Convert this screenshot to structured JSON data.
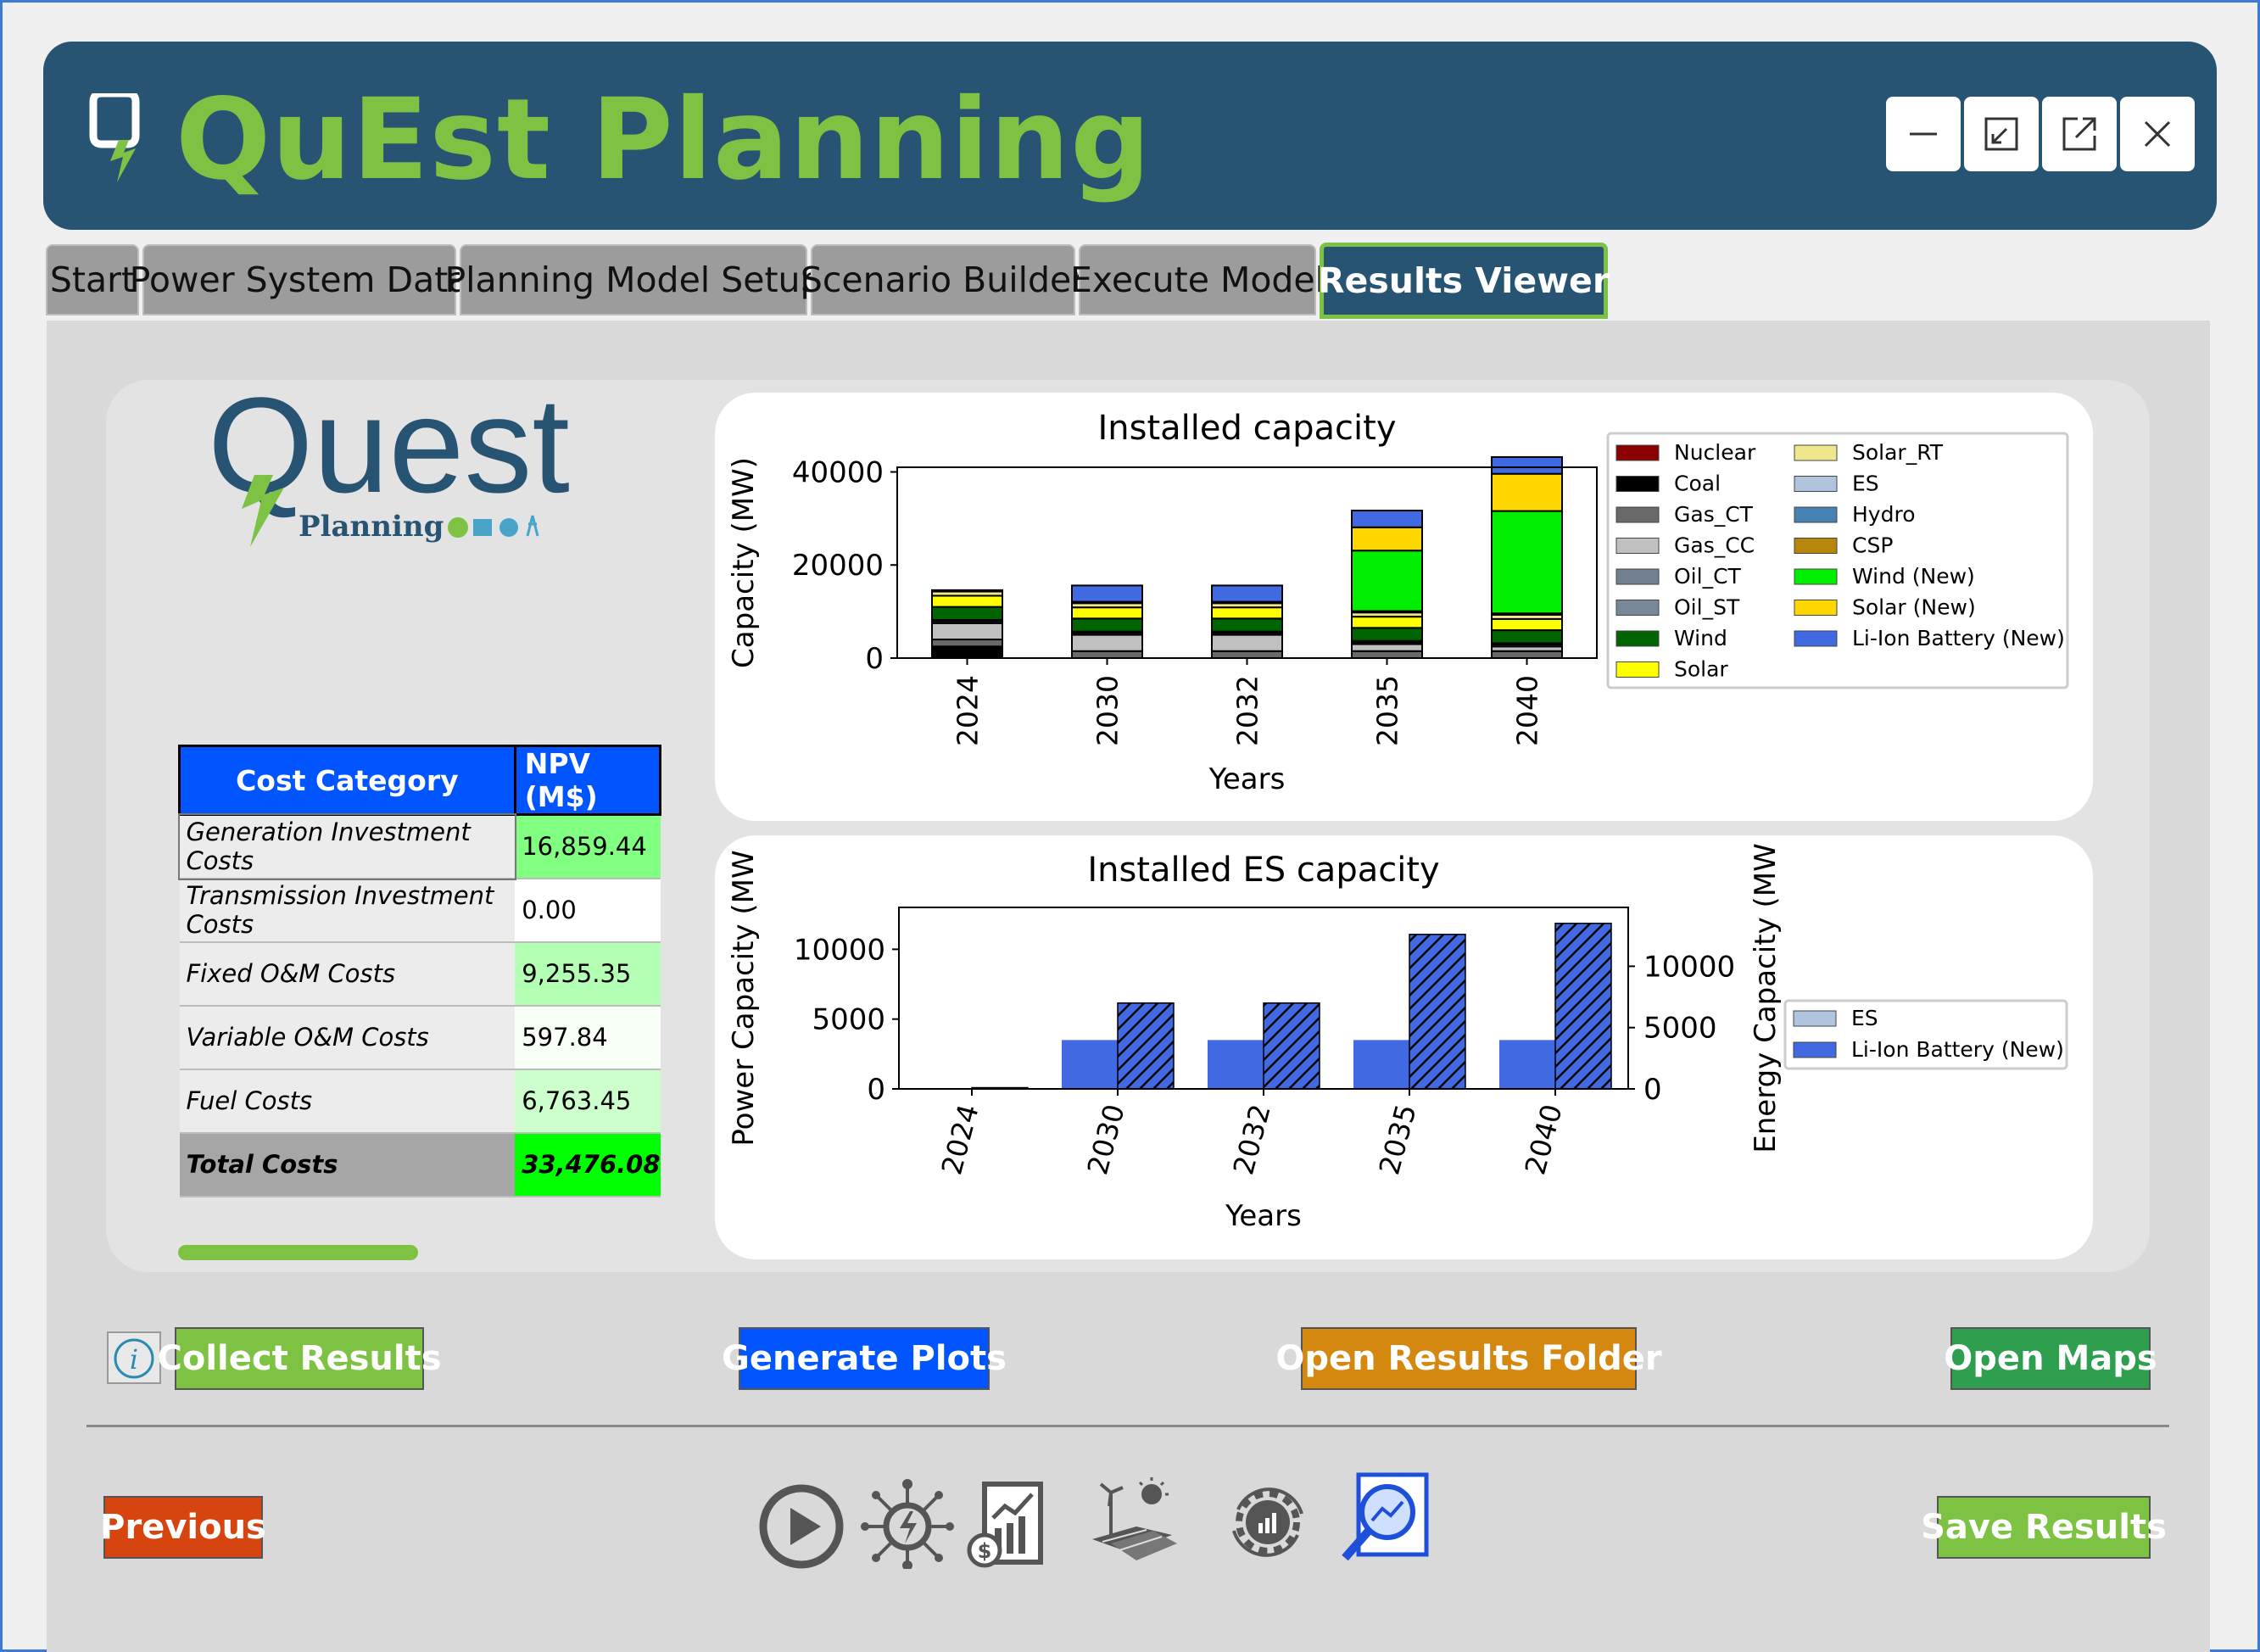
{
  "app": {
    "title": "QuEst Planning"
  },
  "window_controls": [
    {
      "name": "minimize"
    },
    {
      "name": "restore"
    },
    {
      "name": "popout"
    },
    {
      "name": "close"
    }
  ],
  "tabs": [
    {
      "label": "Start",
      "active": false
    },
    {
      "label": "Power System Data",
      "active": false
    },
    {
      "label": "Planning Model Setup",
      "active": false
    },
    {
      "label": "Scenario Builder",
      "active": false
    },
    {
      "label": "Execute Model",
      "active": false
    },
    {
      "label": "Results Viewer",
      "active": true
    }
  ],
  "logo": {
    "text_main": "Quest",
    "text_sub": "Planning"
  },
  "cost_table": {
    "headers": [
      "Cost Category",
      "NPV (M$)"
    ],
    "rows": [
      {
        "category": "Generation Investment Costs",
        "npv": "16,859.44",
        "color": "#80ff80"
      },
      {
        "category": "Transmission Investment Costs",
        "npv": "0.00",
        "color": "#ffffff"
      },
      {
        "category": "Fixed O&M Costs",
        "npv": "9,255.35",
        "color": "#b3ffb3"
      },
      {
        "category": "Variable O&M Costs",
        "npv": "597.84",
        "color": "#f7fff7"
      },
      {
        "category": "Fuel Costs",
        "npv": "6,763.45",
        "color": "#ccffcc"
      }
    ],
    "total": {
      "category": "Total Costs",
      "npv": "33,476.08"
    }
  },
  "chart_data": [
    {
      "type": "bar",
      "stacked": true,
      "title": "Installed capacity",
      "xlabel": "Years",
      "ylabel": "Capacity (MW)",
      "categories": [
        "2024",
        "2030",
        "2032",
        "2035",
        "2040"
      ],
      "ylim": [
        0,
        41000
      ],
      "yticks": [
        0,
        20000,
        40000
      ],
      "legend_position": "right",
      "series": [
        {
          "name": "Nuclear",
          "color": "#8b0000",
          "values": [
            0,
            0,
            0,
            0,
            0
          ]
        },
        {
          "name": "Coal",
          "color": "#000000",
          "values": [
            2500,
            0,
            0,
            0,
            0
          ]
        },
        {
          "name": "Gas_CT",
          "color": "#696969",
          "values": [
            1500,
            1500,
            1500,
            1500,
            1500
          ]
        },
        {
          "name": "Gas_CC",
          "color": "#c0c0c0",
          "values": [
            3500,
            3500,
            3500,
            1500,
            1000
          ]
        },
        {
          "name": "Oil_CT",
          "color": "#708090",
          "values": [
            400,
            400,
            400,
            400,
            400
          ]
        },
        {
          "name": "Oil_ST",
          "color": "#778899",
          "values": [
            300,
            300,
            300,
            300,
            300
          ]
        },
        {
          "name": "Wind",
          "color": "#006400",
          "values": [
            2800,
            2800,
            2800,
            2800,
            2800
          ]
        },
        {
          "name": "Solar",
          "color": "#ffff00",
          "values": [
            2400,
            2400,
            2400,
            2400,
            2400
          ]
        },
        {
          "name": "Solar_RT",
          "color": "#f0e68c",
          "values": [
            900,
            900,
            900,
            900,
            900
          ]
        },
        {
          "name": "ES",
          "color": "#b0c4de",
          "values": [
            100,
            100,
            100,
            100,
            100
          ]
        },
        {
          "name": "Hydro",
          "color": "#4682b4",
          "values": [
            200,
            200,
            200,
            200,
            200
          ]
        },
        {
          "name": "CSP",
          "color": "#b8860b",
          "values": [
            0,
            0,
            0,
            0,
            0
          ]
        },
        {
          "name": "Wind (New)",
          "color": "#00ee00",
          "values": [
            0,
            0,
            0,
            13000,
            22000
          ]
        },
        {
          "name": "Solar (New)",
          "color": "#ffd700",
          "values": [
            0,
            0,
            0,
            5000,
            8000
          ]
        },
        {
          "name": "Li-Ion Battery (New)",
          "color": "#4169e1",
          "values": [
            0,
            3500,
            3500,
            3600,
            3600
          ]
        }
      ]
    },
    {
      "type": "bar",
      "title": "Installed ES capacity",
      "xlabel": "Years",
      "ylabel": "Power Capacity (MW",
      "ylabel_right": "Energy Capacity (MW",
      "categories": [
        "2024",
        "2030",
        "2032",
        "2035",
        "2040"
      ],
      "ylim": [
        0,
        13000
      ],
      "ylim_right": [
        0,
        14800
      ],
      "yticks": [
        0,
        5000,
        10000
      ],
      "yticks_right": [
        0,
        5000,
        10000
      ],
      "legend_position": "right",
      "legend": [
        {
          "name": "ES",
          "color": "#b0c4de"
        },
        {
          "name": "Li-Ion Battery (New)",
          "color": "#4169e1"
        }
      ],
      "series": [
        {
          "name": "Power Capacity",
          "color": "#4169e1",
          "hatch": false,
          "values": [
            0,
            3500,
            3500,
            3500,
            3500
          ]
        },
        {
          "name": "Energy Capacity",
          "color": "#4169e1",
          "hatch": true,
          "values": [
            100,
            7000,
            7000,
            12600,
            13500
          ]
        }
      ]
    }
  ],
  "buttons": {
    "collect": {
      "label": "Collect Results",
      "color": "#7dc242"
    },
    "generate": {
      "label": "Generate Plots",
      "color": "#0055ff"
    },
    "open_folder": {
      "label": "Open Results Folder",
      "color": "#d4880f"
    },
    "open_maps": {
      "label": "Open Maps",
      "color": "#2e9e4f"
    },
    "previous": {
      "label": "Previous",
      "color": "#d64510"
    },
    "save": {
      "label": "Save Results",
      "color": "#7dc242"
    }
  },
  "nav_icons": [
    "play-icon",
    "power-network-icon",
    "financial-report-icon",
    "renewable-energy-icon",
    "settings-cycle-icon",
    "results-search-icon"
  ]
}
